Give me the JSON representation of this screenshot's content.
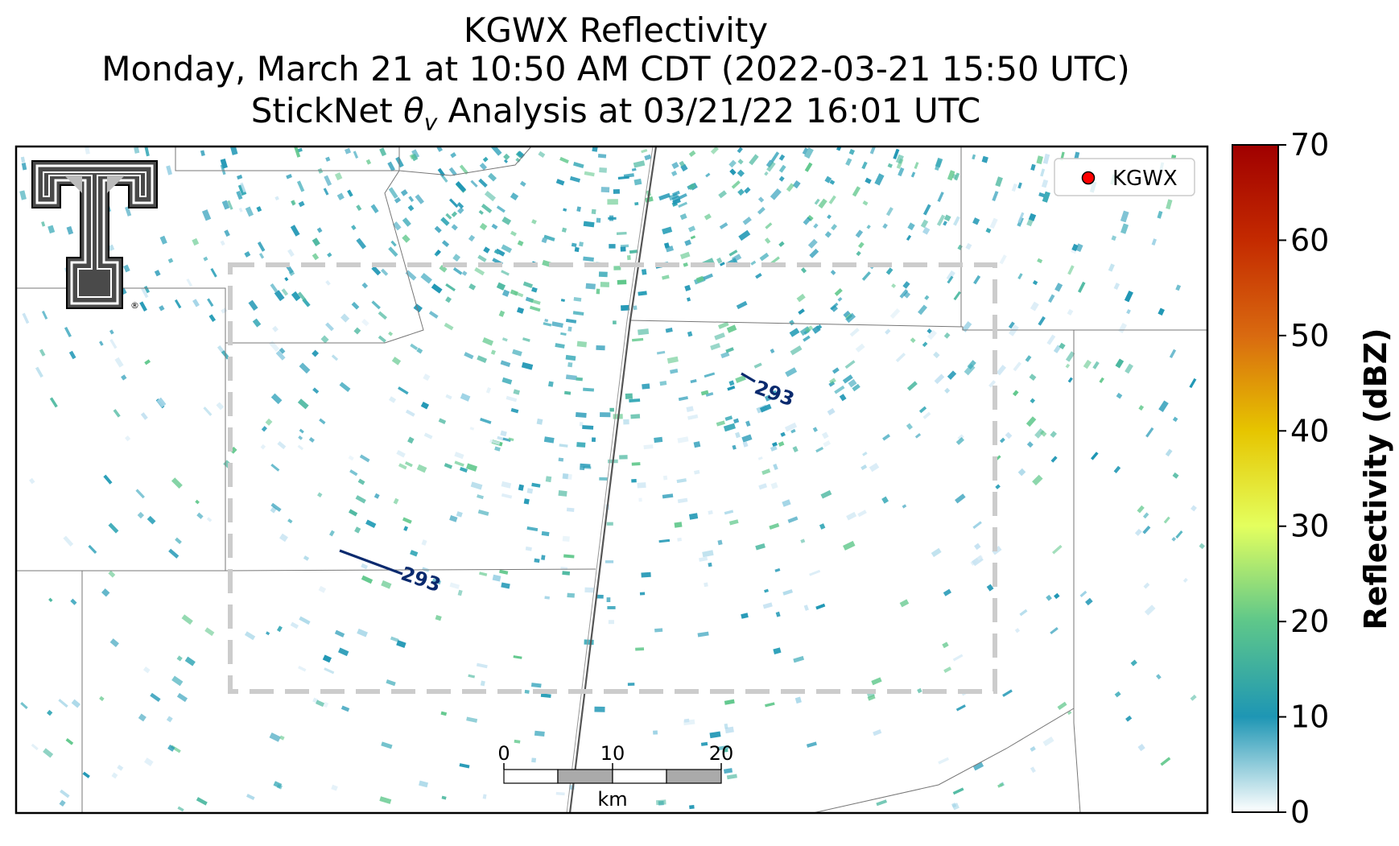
{
  "titles": {
    "line1": "KGWX Reflectivity",
    "line2": "Monday, March 21 at 10:50 AM CDT (2022-03-21 15:50 UTC)",
    "line3_prefix": "StickNet ",
    "line3_theta": "θ",
    "line3_sub": "v",
    "line3_suffix": " Analysis at 03/21/22 16:01 UTC"
  },
  "legend": {
    "label": "KGWX",
    "marker_color": "#ff0000"
  },
  "contour_labels": [
    "293",
    "293"
  ],
  "contour_color": "#0a2a6e",
  "scale_bar": {
    "ticks": [
      "0",
      "10",
      "20"
    ],
    "unit": "km"
  },
  "colorbar": {
    "label": "Reflectivity (dBZ)",
    "ticks": [
      "0",
      "10",
      "20",
      "30",
      "40",
      "50",
      "60",
      "70"
    ],
    "colors": [
      "#ffffff",
      "#1e96b4",
      "#5ec78a",
      "#e4ff5e",
      "#e6c500",
      "#d96a10",
      "#c42a00",
      "#a00000"
    ]
  },
  "logo": {
    "name": "texas-tech-double-t-logo",
    "registered_mark": "®"
  }
}
